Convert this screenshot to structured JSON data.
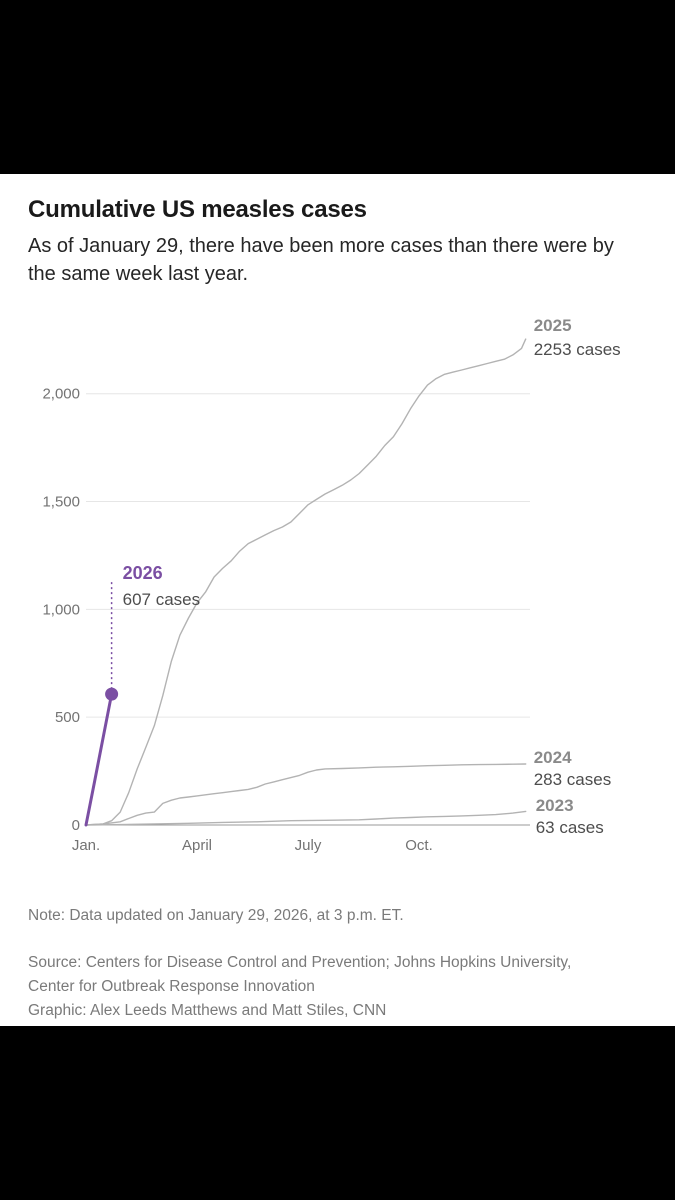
{
  "chart_data": {
    "type": "line",
    "title": "Cumulative US measles cases",
    "subtitle": "As of January 29, there have been more cases than there were by the same week last year.",
    "x_ticks": [
      "Jan.",
      "April",
      "July",
      "Oct."
    ],
    "x_tick_weeks": [
      0,
      13,
      26,
      39
    ],
    "y_ticks": [
      0,
      500,
      1000,
      1500,
      2000
    ],
    "y_tick_labels": [
      "0",
      "500",
      "1,000",
      "1,500",
      "2,000"
    ],
    "xlim": [
      0,
      52
    ],
    "ylim": [
      0,
      2300
    ],
    "xlabel": "",
    "ylabel": "",
    "grid": true,
    "series": [
      {
        "name": "2025",
        "label_year": "2025",
        "label_cases": "2253 cases",
        "color": "#b3b3b3",
        "x": [
          0,
          2,
          3,
          4,
          5,
          6,
          7,
          8,
          9,
          10,
          11,
          12,
          13,
          14,
          15,
          16,
          17,
          18,
          19,
          20,
          21,
          22,
          23,
          24,
          25,
          26,
          27,
          28,
          29,
          30,
          31,
          32,
          33,
          34,
          35,
          36,
          37,
          38,
          39,
          40,
          41,
          42,
          43,
          44,
          45,
          46,
          47,
          48,
          49,
          50,
          51,
          51.5
        ],
        "y": [
          0,
          5,
          20,
          60,
          150,
          260,
          360,
          460,
          600,
          760,
          880,
          960,
          1030,
          1080,
          1150,
          1190,
          1225,
          1270,
          1305,
          1325,
          1345,
          1365,
          1382,
          1405,
          1445,
          1485,
          1510,
          1535,
          1555,
          1575,
          1600,
          1630,
          1670,
          1710,
          1760,
          1800,
          1860,
          1930,
          1990,
          2040,
          2070,
          2090,
          2100,
          2110,
          2120,
          2130,
          2140,
          2150,
          2160,
          2180,
          2210,
          2253
        ]
      },
      {
        "name": "2024",
        "label_year": "2024",
        "label_cases": "283 cases",
        "color": "#b3b3b3",
        "x": [
          0,
          2,
          4,
          5,
          6,
          7,
          8,
          9,
          10,
          11,
          12,
          13,
          14,
          15,
          16,
          17,
          18,
          19,
          20,
          21,
          22,
          23,
          24,
          25,
          26,
          27,
          28,
          30,
          32,
          34,
          36,
          38,
          40,
          42,
          44,
          46,
          48,
          50,
          51.5
        ],
        "y": [
          0,
          5,
          15,
          30,
          45,
          55,
          60,
          100,
          115,
          125,
          130,
          135,
          140,
          145,
          150,
          155,
          160,
          165,
          175,
          190,
          200,
          210,
          220,
          230,
          245,
          255,
          260,
          262,
          265,
          268,
          270,
          272,
          275,
          277,
          279,
          280,
          281,
          282,
          283
        ]
      },
      {
        "name": "2023",
        "label_year": "2023",
        "label_cases": "63 cases",
        "color": "#b3b3b3",
        "x": [
          0,
          4,
          8,
          12,
          16,
          20,
          24,
          28,
          32,
          34,
          36,
          38,
          40,
          42,
          44,
          46,
          48,
          50,
          51.5
        ],
        "y": [
          0,
          2,
          5,
          8,
          12,
          15,
          20,
          22,
          24,
          28,
          32,
          35,
          38,
          40,
          42,
          45,
          48,
          55,
          63
        ]
      },
      {
        "name": "2026",
        "label_year": "2026",
        "label_cases": "607 cases",
        "color": "#7b4fa3",
        "x": [
          0,
          1,
          3
        ],
        "y": [
          0,
          200,
          607
        ]
      }
    ]
  },
  "footer": {
    "note": "Note: Data updated on January 29, 2026, at 3 p.m. ET.",
    "source_line1": "Source: Centers for Disease Control and Prevention; Johns Hopkins University,",
    "source_line2": "Center for Outbreak Response Innovation",
    "graphic_credit": "Graphic: Alex Leeds Matthews and Matt Stiles, CNN"
  }
}
